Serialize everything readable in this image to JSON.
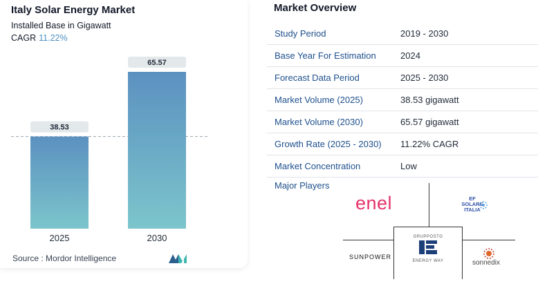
{
  "left": {
    "title": "Italy Solar Energy Market",
    "subtitle": "Installed Base in Gigawatt",
    "cagr_label": "CAGR",
    "cagr_value": "11.22%",
    "source": "Source : Mordor Intelligence"
  },
  "chart_data": {
    "type": "bar",
    "categories": [
      "2025",
      "2030"
    ],
    "values": [
      38.53,
      65.57
    ],
    "value_labels": [
      "38.53",
      "65.57"
    ],
    "title": "Italy Solar Energy Market",
    "subtitle": "Installed Base in Gigawatt",
    "ylim": [
      0,
      70
    ],
    "reference_line": 38.53,
    "bar_color_top": "#5b91c0",
    "bar_color_bottom": "#7cc5cc"
  },
  "overview": {
    "title": "Market Overview",
    "rows": [
      {
        "key": "Study Period",
        "value": "2019 - 2030"
      },
      {
        "key": "Base Year For Estimation",
        "value": "2024"
      },
      {
        "key": "Forecast Data Period",
        "value": "2025 - 2030"
      },
      {
        "key": "Market Volume (2025)",
        "value": "38.53 gigawatt"
      },
      {
        "key": "Market Volume (2030)",
        "value": "65.57 gigawatt"
      },
      {
        "key": "Growth Rate (2025 - 2030)",
        "value": "11.22% CAGR"
      },
      {
        "key": "Market Concentration",
        "value": "Low"
      }
    ],
    "major_players_label": "Major Players"
  },
  "players": {
    "enel": "enel",
    "ef_line1": "EF",
    "ef_line2": "SOLARE",
    "ef_line3": "ITALIA",
    "sunpower": "SUNPOWER",
    "gruppo_line1": "GRUPPOSTG",
    "gruppo_line2": "ENERGY WAY",
    "sonnedix": "sonnedix"
  }
}
